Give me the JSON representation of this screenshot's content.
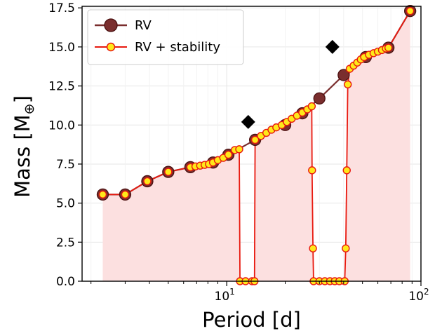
{
  "chart_data": {
    "type": "line",
    "xscale": "log",
    "xlim": [
      1.8,
      100
    ],
    "ylim": [
      0,
      17.6
    ],
    "xlabel": "Period [d]",
    "ylabel_main": "Mass [M",
    "ylabel_sub": "⊕",
    "ylabel_close": "]",
    "yticks": [
      {
        "v": 0.0,
        "label": "0.0"
      },
      {
        "v": 2.5,
        "label": "2.5"
      },
      {
        "v": 5.0,
        "label": "5.0"
      },
      {
        "v": 7.5,
        "label": "7.5"
      },
      {
        "v": 10.0,
        "label": "10.0"
      },
      {
        "v": 12.5,
        "label": "12.5"
      },
      {
        "v": 15.0,
        "label": "15.0"
      },
      {
        "v": 17.5,
        "label": "17.5"
      }
    ],
    "xticks_major": [
      {
        "v": 10,
        "base": "10",
        "exp": "1"
      },
      {
        "v": 100,
        "base": "10",
        "exp": "2"
      }
    ],
    "grid": true,
    "legend_position": "top-left",
    "series": [
      {
        "name": "RV",
        "color": "#7a2e2e",
        "marker_color": "#7a2e2e",
        "points": [
          [
            2.3,
            5.55
          ],
          [
            3.0,
            5.55
          ],
          [
            3.9,
            6.4
          ],
          [
            5.0,
            7.0
          ],
          [
            6.5,
            7.3
          ],
          [
            8.5,
            7.6
          ],
          [
            10.2,
            8.1
          ],
          [
            14.0,
            9.05
          ],
          [
            20.0,
            10.0
          ],
          [
            24.5,
            10.75
          ],
          [
            30.0,
            11.7
          ],
          [
            40.0,
            13.2
          ],
          [
            52.0,
            14.35
          ],
          [
            68.0,
            14.95
          ],
          [
            88.0,
            17.3
          ]
        ]
      },
      {
        "name": "RV + stability",
        "color": "#e8190f",
        "marker_color": "#ffe81a",
        "fill_color": "#fce0e0",
        "points": [
          [
            2.3,
            5.55
          ],
          [
            3.0,
            5.55
          ],
          [
            3.9,
            6.4
          ],
          [
            5.0,
            7.0
          ],
          [
            6.5,
            7.3
          ],
          [
            6.9,
            7.35
          ],
          [
            7.3,
            7.4
          ],
          [
            7.7,
            7.45
          ],
          [
            8.1,
            7.5
          ],
          [
            8.5,
            7.6
          ],
          [
            9.0,
            7.75
          ],
          [
            9.6,
            7.9
          ],
          [
            10.2,
            8.1
          ],
          [
            11.0,
            8.4
          ],
          [
            11.6,
            8.45
          ],
          [
            11.7,
            0.0
          ],
          [
            12.5,
            0.0
          ],
          [
            13.5,
            0.0
          ],
          [
            13.9,
            0.0
          ],
          [
            14.0,
            9.05
          ],
          [
            15.0,
            9.3
          ],
          [
            16.0,
            9.5
          ],
          [
            17.0,
            9.7
          ],
          [
            18.0,
            9.85
          ],
          [
            19.2,
            10.0
          ],
          [
            20.4,
            10.2
          ],
          [
            21.6,
            10.4
          ],
          [
            23.0,
            10.6
          ],
          [
            24.5,
            10.8
          ],
          [
            26.0,
            11.0
          ],
          [
            27.4,
            11.2
          ],
          [
            27.5,
            7.1
          ],
          [
            27.8,
            2.1
          ],
          [
            28.0,
            0.0
          ],
          [
            30.0,
            0.0
          ],
          [
            32.0,
            0.0
          ],
          [
            34.0,
            0.0
          ],
          [
            36.0,
            0.0
          ],
          [
            38.0,
            0.0
          ],
          [
            40.5,
            0.0
          ],
          [
            41.0,
            2.1
          ],
          [
            41.5,
            7.1
          ],
          [
            42.0,
            12.6
          ],
          [
            43.0,
            13.6
          ],
          [
            45.0,
            13.8
          ],
          [
            47.0,
            14.0
          ],
          [
            49.0,
            14.2
          ],
          [
            51.0,
            14.35
          ],
          [
            54.0,
            14.5
          ],
          [
            57.0,
            14.6
          ],
          [
            60.0,
            14.7
          ],
          [
            63.0,
            14.8
          ],
          [
            66.0,
            14.9
          ],
          [
            68.0,
            14.95
          ],
          [
            88.0,
            17.3
          ]
        ]
      }
    ],
    "extra_markers": [
      {
        "name": "diamond",
        "color": "#000000",
        "points": [
          [
            12.9,
            10.2
          ],
          [
            35.0,
            15.0
          ]
        ]
      }
    ]
  }
}
